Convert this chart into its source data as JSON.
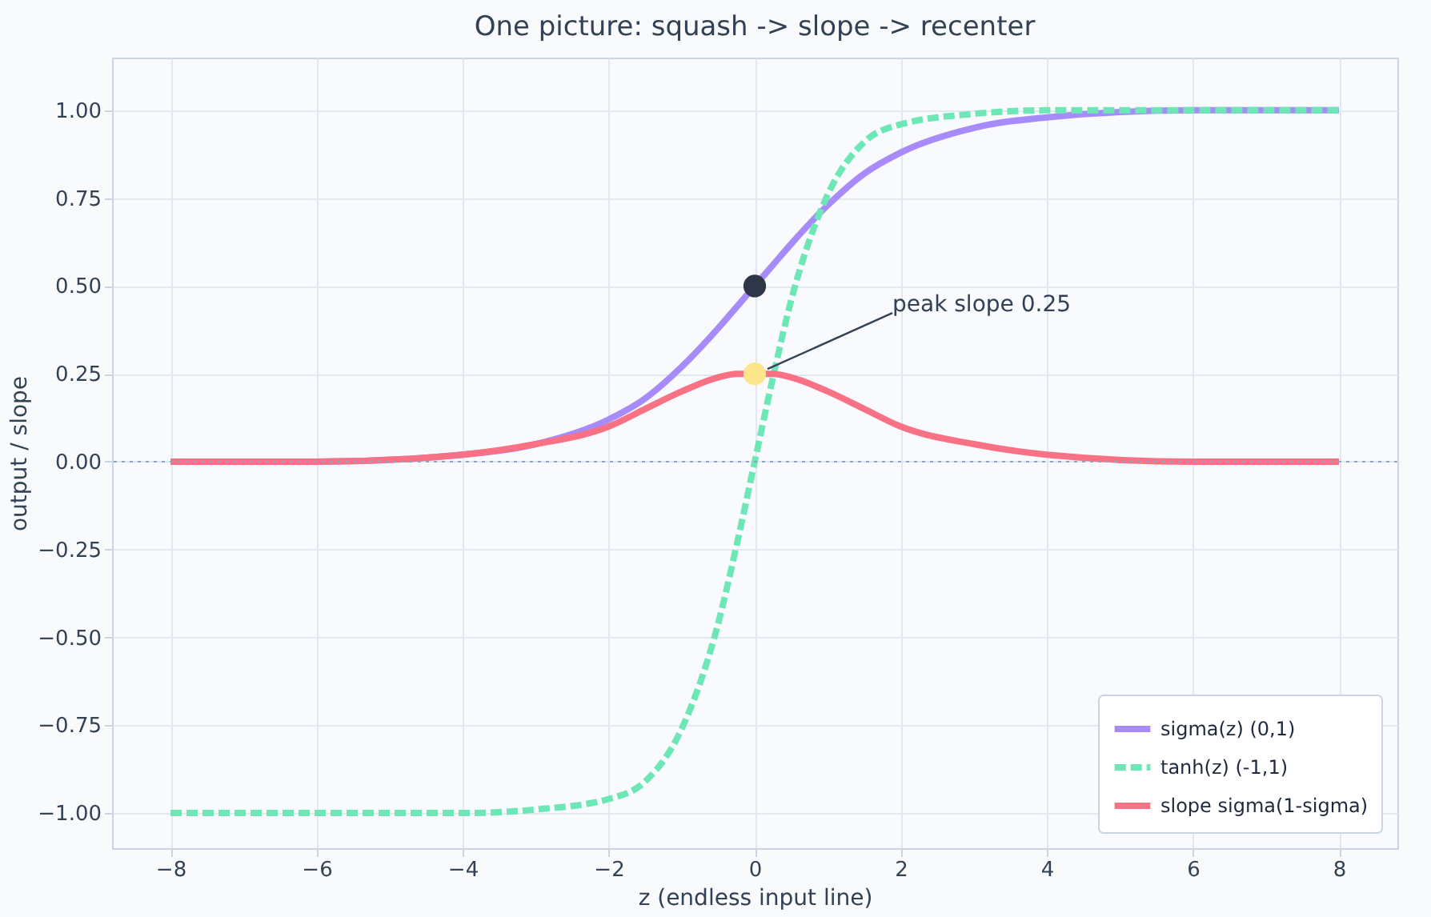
{
  "chart_data": {
    "type": "line",
    "title": "One picture: squash -> slope -> recenter",
    "xlabel": "z (endless input line)",
    "ylabel": "output / slope",
    "xlim": [
      -8.8,
      8.8
    ],
    "ylim": [
      -1.1,
      1.15
    ],
    "xticks": [
      {
        "value": -8,
        "label": "−8"
      },
      {
        "value": -6,
        "label": "−6"
      },
      {
        "value": -4,
        "label": "−4"
      },
      {
        "value": -2,
        "label": "−2"
      },
      0,
      2,
      4,
      6,
      8
    ],
    "yticks": [
      {
        "value": -1,
        "label": "−1.00"
      },
      {
        "value": -0.75,
        "label": "−0.75"
      },
      {
        "value": -0.5,
        "label": "−0.50"
      },
      {
        "value": -0.25,
        "label": "−0.25"
      },
      {
        "value": 0,
        "label": "0.00"
      },
      {
        "value": 0.25,
        "label": "0.25"
      },
      {
        "value": 0.5,
        "label": "0.50"
      },
      {
        "value": 0.75,
        "label": "0.75"
      },
      {
        "value": 1,
        "label": "1.00"
      }
    ],
    "x": [
      -8,
      -6,
      -4,
      -3,
      -2,
      -1.5,
      -1,
      -0.5,
      -0.25,
      0,
      0.25,
      0.5,
      1,
      1.5,
      2,
      3,
      4,
      6,
      8
    ],
    "series": [
      {
        "name": "sigma(z)  (0,1)",
        "color": "#a78bfa",
        "values": [
          0,
          0,
          0.02,
          0.05,
          0.12,
          0.18,
          0.27,
          0.38,
          0.44,
          0.5,
          0.56,
          0.62,
          0.73,
          0.82,
          0.88,
          0.95,
          0.98,
          1,
          1
        ]
      },
      {
        "name": "tanh(z)  (-1,1)",
        "color": "#6ee7b7",
        "line_style": "dashed",
        "values": [
          -1,
          -1,
          -1,
          -0.99,
          -0.96,
          -0.91,
          -0.76,
          -0.46,
          -0.24,
          0,
          0.24,
          0.46,
          0.76,
          0.91,
          0.96,
          0.99,
          1,
          1,
          1
        ]
      },
      {
        "name": "slope sigma(1-sigma)",
        "color": "#f87185",
        "values": [
          0,
          0,
          0.02,
          0.05,
          0.1,
          0.15,
          0.2,
          0.24,
          0.25,
          0.25,
          0.25,
          0.24,
          0.2,
          0.15,
          0.1,
          0.05,
          0.02,
          0,
          0
        ]
      },
      {
        "type": "scatter",
        "marker": "circle",
        "color": "#2d3748",
        "x": [
          0
        ],
        "values": [
          0.5
        ]
      },
      {
        "type": "scatter",
        "marker": "circle",
        "color": "#fde68a",
        "x": [
          0
        ],
        "values": [
          0.25
        ]
      }
    ],
    "ref_lines": [
      {
        "axis": "y",
        "value": 0,
        "color": "#94a3b8",
        "line_style": "dotted"
      }
    ],
    "annotations": [
      {
        "text": "peak slope 0.25",
        "x": 0,
        "y": 0.25
      }
    ],
    "grid": true,
    "legend": "bottom right",
    "line_style": "solid"
  }
}
